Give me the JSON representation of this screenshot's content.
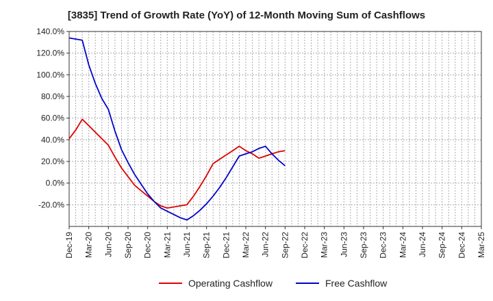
{
  "chart_data": {
    "type": "line",
    "title": "[3835]  Trend of Growth Rate (YoY) of 12-Month Moving Sum of Cashflows",
    "xlabel": "",
    "ylabel": "",
    "ylim": [
      -40,
      140
    ],
    "y_ticks": [
      -20,
      0,
      20,
      40,
      60,
      80,
      100,
      120,
      140
    ],
    "y_tick_labels": [
      "-20.0%",
      "0.0%",
      "20.0%",
      "40.0%",
      "60.0%",
      "80.0%",
      "100.0%",
      "120.0%",
      "140.0%"
    ],
    "x_tick_labels": [
      "Dec-19",
      "Mar-20",
      "Jun-20",
      "Sep-20",
      "Dec-20",
      "Mar-21",
      "Jun-21",
      "Sep-21",
      "Dec-21",
      "Mar-22",
      "Jun-22",
      "Sep-22",
      "Dec-22",
      "Mar-23",
      "Jun-23",
      "Sep-23",
      "Dec-23",
      "Mar-24",
      "Jun-24",
      "Sep-24",
      "Dec-24",
      "Mar-25"
    ],
    "grid": true,
    "legend_placement": "bottom",
    "series": [
      {
        "name": "Operating Cashflow",
        "color": "#dd0000",
        "values": [
          41,
          49,
          59,
          53,
          47,
          41,
          35,
          24,
          14,
          6,
          -2,
          -7,
          -12,
          -17,
          -21,
          -23,
          -22,
          -21,
          -20,
          -12,
          -3,
          7,
          18,
          22,
          26,
          30,
          34,
          30,
          27,
          23,
          25,
          27,
          29,
          30
        ]
      },
      {
        "name": "Free Cashflow",
        "color": "#0000cc",
        "values": [
          134,
          133,
          132,
          109,
          92,
          78,
          68,
          48,
          31,
          19,
          8,
          -1,
          -10,
          -17,
          -23,
          -26,
          -29,
          -32,
          -34,
          -30,
          -25,
          -19,
          -12,
          -4,
          5,
          15,
          25,
          27,
          29,
          32,
          34,
          27,
          21,
          16
        ]
      }
    ]
  }
}
